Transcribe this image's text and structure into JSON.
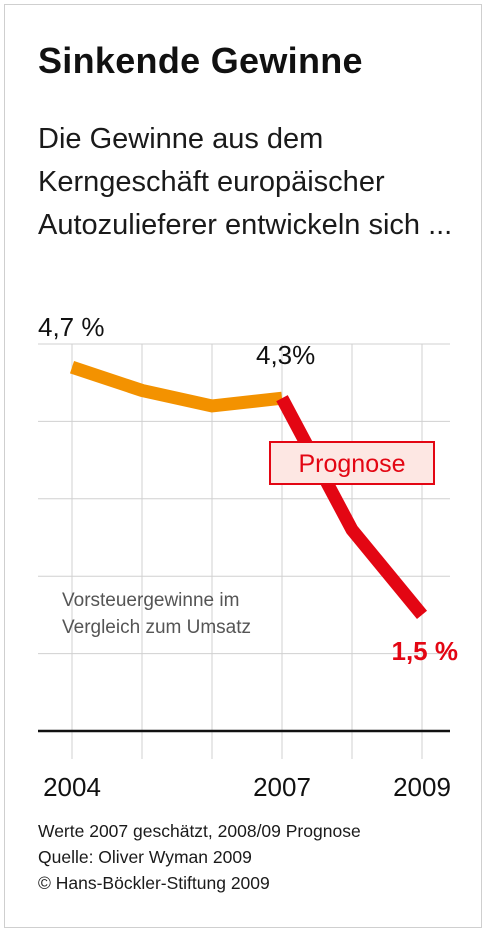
{
  "header": {
    "title": "Sinkende Gewinne",
    "subtitle": "Die Gewinne aus dem Kerngeschäft europäischer Autozulieferer entwickeln sich ..."
  },
  "chart_data": {
    "type": "line",
    "x": [
      2004,
      2005,
      2006,
      2007,
      2008,
      2009
    ],
    "xticks": [
      "2004",
      "2007",
      "2009"
    ],
    "ylim": [
      0,
      5
    ],
    "grid": true,
    "series": [
      {
        "name": "",
        "values": [
          4.7,
          4.4,
          4.2,
          4.3,
          null,
          null
        ],
        "color": "#f39200"
      },
      {
        "name": "",
        "values": [
          null,
          null,
          null,
          4.3,
          2.6,
          1.5
        ],
        "color": "#e30613"
      }
    ],
    "data_labels": {
      "start": "4,7 %",
      "mid": "4,3%",
      "end": "1,5 %"
    },
    "annotation_box": "Prognose",
    "annotation_text": [
      "Vorsteuergewinne im",
      "Vergleich zum Umsatz"
    ]
  },
  "colors": {
    "actual": "#f39200",
    "forecast": "#e30613",
    "box_fill": "#fde7e3",
    "grid": "#d0d0d0",
    "axis": "#111111"
  },
  "footer": {
    "line1": "Werte 2007 geschätzt, 2008/09 Prognose",
    "line2": "Quelle: Oliver Wyman 2009",
    "line3": "© Hans-Böckler-Stiftung 2009"
  }
}
